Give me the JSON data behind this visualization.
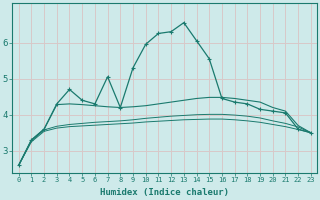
{
  "xlabel": "Humidex (Indice chaleur)",
  "bg_color": "#ceeaea",
  "grid_color": "#d8c8c8",
  "line_color": "#1a7a6e",
  "x_ticks": [
    0,
    1,
    2,
    3,
    4,
    5,
    6,
    7,
    8,
    9,
    10,
    11,
    12,
    13,
    14,
    15,
    16,
    17,
    18,
    19,
    20,
    21,
    22,
    23
  ],
  "y_ticks": [
    3,
    4,
    5,
    6
  ],
  "ylim": [
    2.4,
    7.1
  ],
  "xlim": [
    -0.5,
    23.5
  ],
  "series1_x": [
    0,
    1,
    2,
    3,
    4,
    5,
    6,
    7,
    8,
    9,
    10,
    11,
    12,
    13,
    14,
    15,
    16,
    17,
    18,
    19,
    20,
    21,
    22,
    23
  ],
  "series1_y": [
    2.6,
    3.3,
    3.6,
    4.3,
    4.7,
    4.4,
    4.3,
    5.05,
    4.2,
    5.3,
    5.95,
    6.25,
    6.3,
    6.55,
    6.05,
    5.55,
    4.45,
    4.35,
    4.3,
    4.15,
    4.1,
    4.05,
    3.6,
    3.5
  ],
  "series2_x": [
    0,
    1,
    2,
    3,
    4,
    5,
    6,
    7,
    8,
    9,
    10,
    11,
    12,
    13,
    14,
    15,
    16,
    17,
    18,
    19,
    20,
    21,
    22,
    23
  ],
  "series2_y": [
    2.6,
    3.3,
    3.6,
    4.28,
    4.3,
    4.28,
    4.25,
    4.22,
    4.2,
    4.22,
    4.25,
    4.3,
    4.35,
    4.4,
    4.45,
    4.48,
    4.48,
    4.45,
    4.4,
    4.35,
    4.2,
    4.1,
    3.7,
    3.5
  ],
  "series3_x": [
    0,
    1,
    2,
    3,
    4,
    5,
    6,
    7,
    8,
    9,
    10,
    11,
    12,
    13,
    14,
    15,
    16,
    17,
    18,
    19,
    20,
    21,
    22,
    23
  ],
  "series3_y": [
    2.6,
    3.28,
    3.58,
    3.68,
    3.73,
    3.76,
    3.79,
    3.81,
    3.83,
    3.86,
    3.9,
    3.93,
    3.96,
    3.98,
    4.0,
    4.01,
    4.01,
    3.99,
    3.96,
    3.91,
    3.83,
    3.76,
    3.66,
    3.5
  ],
  "series4_x": [
    0,
    1,
    2,
    3,
    4,
    5,
    6,
    7,
    8,
    9,
    10,
    11,
    12,
    13,
    14,
    15,
    16,
    17,
    18,
    19,
    20,
    21,
    22,
    23
  ],
  "series4_y": [
    2.6,
    3.25,
    3.54,
    3.63,
    3.67,
    3.69,
    3.71,
    3.73,
    3.75,
    3.77,
    3.8,
    3.82,
    3.84,
    3.86,
    3.87,
    3.88,
    3.88,
    3.86,
    3.83,
    3.79,
    3.73,
    3.67,
    3.59,
    3.5
  ]
}
